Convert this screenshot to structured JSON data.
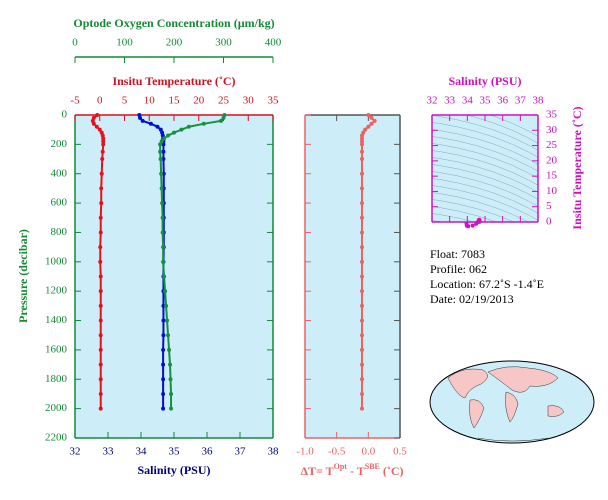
{
  "chart_data": [
    {
      "type": "profile",
      "ylabel": "Pressure (decibar)",
      "ylim": [
        0,
        2200
      ],
      "yticks": [
        0,
        200,
        400,
        600,
        800,
        1000,
        1200,
        1400,
        1600,
        1800,
        2000,
        2200
      ],
      "ycolor": "#138a36",
      "axes": {
        "x": {
          "label": "Salinity (PSU)",
          "lim": [
            32,
            38
          ],
          "ticks": [
            32,
            33,
            34,
            35,
            36,
            37,
            38
          ],
          "color": "#00007f"
        },
        "x2": {
          "label": "Insitu Temperature (˚C)",
          "lim": [
            -5,
            35
          ],
          "ticks": [
            -5,
            0,
            5,
            10,
            15,
            20,
            25,
            30,
            35
          ],
          "color": "#d4101e"
        },
        "x3": {
          "label": "Optode Oxygen Concentration (µm/kg)",
          "lim": [
            0,
            400
          ],
          "ticks": [
            0,
            100,
            200,
            300,
            400
          ],
          "color": "#138a36"
        }
      },
      "pressure": [
        0,
        20,
        40,
        60,
        80,
        100,
        120,
        140,
        160,
        180,
        200,
        250,
        300,
        400,
        500,
        600,
        700,
        800,
        900,
        1000,
        1100,
        1200,
        1300,
        1400,
        1500,
        1600,
        1700,
        1800,
        1900,
        2000
      ],
      "series": [
        {
          "axis": "x2",
          "color": "#e8101e",
          "values": [
            -0.5,
            -1.2,
            -1.4,
            -1.2,
            -0.6,
            0.0,
            0.4,
            0.6,
            0.7,
            0.7,
            0.7,
            0.6,
            0.5,
            0.4,
            0.3,
            0.3,
            0.2,
            0.2,
            0.1,
            0.1,
            0.2,
            0.2,
            0.2,
            0.2,
            0.2,
            0.2,
            0.2,
            0.2,
            0.2,
            0.2
          ]
        },
        {
          "axis": "x",
          "color": "#0010d0",
          "values": [
            33.95,
            33.97,
            34.05,
            34.3,
            34.5,
            34.6,
            34.64,
            34.66,
            34.67,
            34.68,
            34.68,
            34.68,
            34.68,
            34.69,
            34.69,
            34.69,
            34.69,
            34.69,
            34.69,
            34.68,
            34.68,
            34.68,
            34.68,
            34.68,
            34.68,
            34.67,
            34.67,
            34.67,
            34.67,
            34.67
          ]
        },
        {
          "axis": "x3",
          "color": "#179040",
          "values": [
            302,
            300,
            295,
            260,
            230,
            215,
            200,
            188,
            180,
            175,
            172,
            172,
            173,
            174,
            175,
            176,
            177,
            177,
            178,
            178,
            180,
            182,
            184,
            186,
            188,
            190,
            192,
            193,
            194,
            194
          ]
        }
      ]
    },
    {
      "type": "profile",
      "xlabel": {
        "a": "ΔT= T",
        "b": "Opt",
        "c": " - T",
        "d": "SBE",
        "e": " (˚C)"
      },
      "xlim": [
        -1,
        0.5
      ],
      "xticks": [
        {
          "value": -1,
          "label": "-1.0"
        },
        -0.5,
        {
          "value": 0,
          "label": "0.0"
        },
        0.5
      ],
      "color": "#f06060",
      "series": [
        {
          "color": "#f06060",
          "values": [
            0.0,
            0.05,
            0.1,
            0.05,
            0.0,
            -0.05,
            -0.08,
            -0.1,
            -0.1,
            -0.1,
            -0.1,
            -0.1,
            -0.1,
            -0.1,
            -0.1,
            -0.1,
            -0.1,
            -0.1,
            -0.1,
            -0.1,
            -0.1,
            -0.1,
            -0.1,
            -0.1,
            -0.1,
            -0.1,
            -0.1,
            -0.1,
            -0.1,
            -0.1
          ]
        }
      ]
    },
    {
      "type": "ts",
      "xlabel": "Salinity (PSU)",
      "ylabel": "Insitu Temperature (˚C)",
      "xlim": [
        32,
        38
      ],
      "xticks": [
        32,
        33,
        34,
        35,
        36,
        37,
        38
      ],
      "ylim": [
        0,
        35
      ],
      "yticks": [
        0,
        5,
        10,
        15,
        20,
        25,
        30,
        35
      ],
      "color": "#d010c0"
    }
  ],
  "float_info": [
    "Float:  7083",
    "Profile:  062",
    "Location:  67.2˚S  -1.4˚E",
    "Date:  02/19/2013"
  ]
}
